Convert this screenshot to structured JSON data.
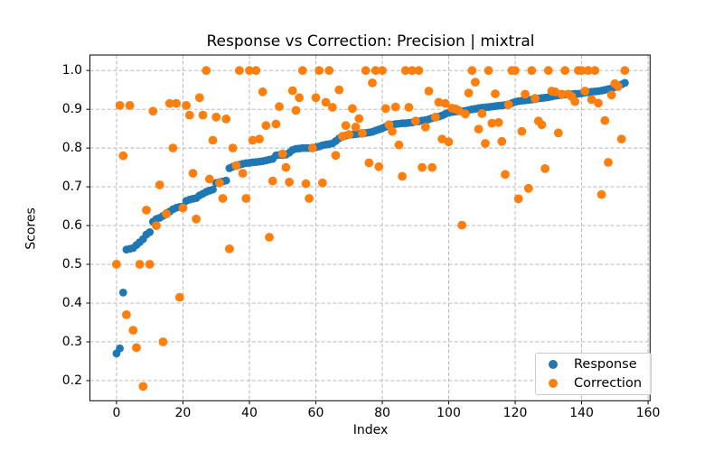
{
  "title": "Response vs Correction: Precision | mixtral",
  "axes": {
    "xlabel": "Index",
    "ylabel": "Scores",
    "x_ticks": [
      0,
      20,
      40,
      60,
      80,
      100,
      120,
      140,
      160
    ],
    "y_ticks": [
      0.2,
      0.3,
      0.4,
      0.5,
      0.6,
      0.7,
      0.8,
      0.9,
      1.0
    ]
  },
  "legend": {
    "position": "lower right",
    "items": [
      {
        "label": "Response",
        "color": "#1f77b4"
      },
      {
        "label": "Correction",
        "color": "#ff7f0e"
      }
    ]
  },
  "colors": {
    "response": "#1f77b4",
    "correction": "#ff7f0e",
    "grid": "#b0b0b0",
    "spine": "#000000",
    "background": "#ffffff"
  },
  "chart_data": {
    "type": "scatter",
    "title": "Response vs Correction: Precision | mixtral",
    "xlabel": "Index",
    "ylabel": "Scores",
    "x_note": "x value equals array index, 0 through 153",
    "xlim": [
      -8.0,
      160.6
    ],
    "ylim": [
      0.148,
      1.04
    ],
    "grid": true,
    "grid_style": "dashed",
    "legend_position": "lower right",
    "series": [
      {
        "name": "Response",
        "color": "#1f77b4",
        "marker": "circle",
        "values": [
          0.27,
          0.283,
          0.427,
          0.538,
          0.54,
          0.542,
          0.55,
          0.557,
          0.565,
          0.577,
          0.583,
          0.61,
          0.617,
          0.62,
          0.625,
          0.632,
          0.636,
          0.642,
          0.646,
          0.648,
          0.649,
          0.664,
          0.667,
          0.669,
          0.671,
          0.678,
          0.682,
          0.687,
          0.69,
          0.693,
          0.71,
          0.712,
          0.714,
          0.716,
          0.748,
          0.752,
          0.755,
          0.757,
          0.759,
          0.761,
          0.762,
          0.763,
          0.764,
          0.765,
          0.766,
          0.768,
          0.77,
          0.772,
          0.781,
          0.782,
          0.782,
          0.783,
          0.788,
          0.795,
          0.798,
          0.799,
          0.8,
          0.8,
          0.8,
          0.801,
          0.802,
          0.804,
          0.807,
          0.809,
          0.81,
          0.812,
          0.818,
          0.825,
          0.829,
          0.832,
          0.834,
          0.835,
          0.836,
          0.837,
          0.838,
          0.839,
          0.84,
          0.842,
          0.845,
          0.848,
          0.851,
          0.855,
          0.858,
          0.86,
          0.862,
          0.863,
          0.864,
          0.864,
          0.865,
          0.866,
          0.868,
          0.869,
          0.871,
          0.872,
          0.874,
          0.877,
          0.879,
          0.881,
          0.884,
          0.888,
          0.891,
          0.893,
          0.894,
          0.895,
          0.895,
          0.896,
          0.898,
          0.9,
          0.901,
          0.903,
          0.904,
          0.905,
          0.906,
          0.907,
          0.908,
          0.909,
          0.91,
          0.911,
          0.913,
          0.916,
          0.919,
          0.921,
          0.922,
          0.923,
          0.924,
          0.925,
          0.926,
          0.928,
          0.929,
          0.93,
          0.931,
          0.933,
          0.935,
          0.936,
          0.937,
          0.938,
          0.939,
          0.939,
          0.94,
          0.94,
          0.941,
          0.943,
          0.944,
          0.945,
          0.946,
          0.947,
          0.948,
          0.95,
          0.952,
          0.954,
          0.957,
          0.96,
          0.964,
          0.968
        ]
      },
      {
        "name": "Correction",
        "color": "#ff7f0e",
        "marker": "circle",
        "values": [
          0.5,
          0.91,
          0.78,
          0.37,
          0.91,
          0.33,
          0.285,
          0.5,
          0.185,
          0.64,
          0.5,
          0.895,
          0.6,
          0.705,
          0.3,
          0.63,
          0.915,
          0.8,
          0.915,
          0.415,
          0.645,
          0.91,
          0.885,
          0.735,
          0.617,
          0.93,
          0.885,
          1.0,
          0.72,
          0.82,
          0.88,
          0.71,
          0.67,
          0.875,
          0.54,
          0.8,
          0.755,
          1.0,
          0.735,
          0.67,
          1.0,
          0.82,
          1.0,
          0.823,
          0.945,
          0.858,
          0.57,
          0.715,
          0.862,
          0.907,
          0.785,
          0.75,
          0.712,
          0.948,
          0.897,
          0.93,
          1.0,
          0.708,
          0.67,
          0.8,
          0.93,
          1.0,
          0.71,
          0.918,
          1.0,
          0.905,
          0.781,
          0.95,
          0.83,
          0.858,
          0.835,
          0.902,
          0.854,
          0.876,
          0.838,
          1.0,
          0.762,
          0.968,
          1.0,
          0.752,
          1.0,
          0.902,
          0.86,
          0.843,
          0.906,
          0.808,
          0.727,
          1.0,
          0.905,
          1.0,
          0.87,
          1.0,
          0.75,
          0.854,
          0.947,
          0.75,
          0.88,
          0.918,
          0.823,
          0.915,
          0.816,
          0.903,
          0.901,
          0.897,
          0.601,
          0.888,
          0.942,
          1.0,
          0.97,
          0.849,
          0.889,
          0.812,
          1.0,
          0.864,
          0.94,
          0.866,
          0.817,
          0.732,
          0.912,
          1.0,
          1.0,
          0.669,
          0.843,
          0.939,
          0.696,
          1.0,
          0.928,
          0.87,
          0.86,
          0.747,
          1.0,
          0.947,
          0.945,
          0.839,
          0.939,
          1.0,
          0.939,
          0.933,
          0.92,
          1.0,
          1.0,
          0.947,
          1.0,
          0.925,
          1.0,
          0.916,
          0.68,
          0.871,
          0.763,
          0.937,
          0.966,
          0.959,
          0.823,
          1.0
        ]
      }
    ]
  }
}
